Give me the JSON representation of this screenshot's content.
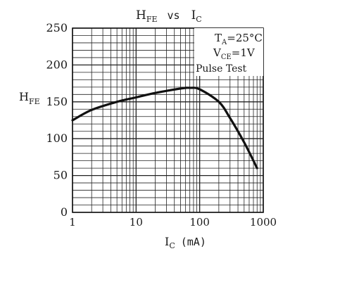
{
  "chart_data": {
    "type": "line",
    "title": {
      "main": "H",
      "main_sub": "FE",
      "vs": "vs",
      "right": "I",
      "right_sub": "C"
    },
    "ylabel": {
      "main": "H",
      "sub": "FE"
    },
    "xlabel": {
      "main": "I",
      "sub": "C",
      "unit": "(mA)"
    },
    "x_scale": "log",
    "xlim": [
      1,
      1000
    ],
    "ylim": [
      0,
      250
    ],
    "x_ticks": [
      1,
      10,
      100,
      1000
    ],
    "x_tick_labels": [
      "1",
      "10",
      "100",
      "1000"
    ],
    "y_ticks": [
      0,
      50,
      100,
      150,
      200,
      250
    ],
    "y_tick_labels": [
      "0",
      "50",
      "100",
      "150",
      "200",
      "250"
    ],
    "grid": true,
    "conditions": {
      "temp": {
        "main": "T",
        "sub": "A",
        "value": "=25°C"
      },
      "vce": {
        "main": "V",
        "sub": "CE",
        "value": "=1V"
      },
      "pulse": "Pulse Test"
    },
    "series": [
      {
        "x": [
          1,
          2,
          5,
          10,
          20,
          50,
          70,
          100,
          200,
          300,
          500,
          800
        ],
        "y": [
          125,
          139,
          150,
          156,
          162,
          168,
          169,
          167,
          150,
          128,
          95,
          60
        ]
      }
    ],
    "colors": {
      "line": "#111111",
      "grid": "#222222",
      "background": "#ffffff"
    }
  }
}
